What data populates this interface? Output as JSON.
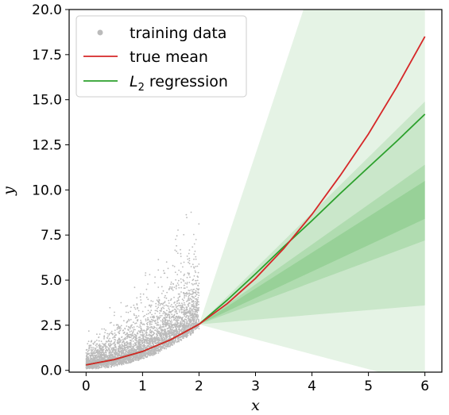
{
  "chart_data": {
    "type": "scatter",
    "xlabel": "x",
    "ylabel": "y",
    "xlim": [
      -0.3,
      6.3
    ],
    "ylim": [
      -0.1,
      20.0
    ],
    "xticks": [
      "0",
      "1",
      "2",
      "3",
      "4",
      "5",
      "6"
    ],
    "yticks": [
      "0.0",
      "2.5",
      "5.0",
      "7.5",
      "10.0",
      "12.5",
      "15.0",
      "17.5",
      "20.0"
    ],
    "legend_position": "upper-left",
    "training_data": {
      "label": "training data",
      "x_range": [
        0,
        2
      ],
      "color": "#bbbbbb",
      "approx_points": 4000
    },
    "true_mean": {
      "label": "true mean",
      "color": "#d62728",
      "x": [
        0,
        0.5,
        1,
        1.5,
        2,
        2.5,
        3,
        3.5,
        4,
        4.5,
        5,
        5.5,
        6
      ],
      "y": [
        0.3,
        0.6,
        1.05,
        1.7,
        2.55,
        3.7,
        5.1,
        6.75,
        8.65,
        10.8,
        13.1,
        15.7,
        18.5
      ]
    },
    "l2_regression": {
      "label": "L2 regression",
      "label_main": "L",
      "label_sub": "2",
      "label_rest": " regression",
      "color": "#2ca02c",
      "x": [
        0,
        0.5,
        1,
        1.5,
        2,
        2.5,
        3,
        3.5,
        4,
        4.5,
        5,
        5.5,
        6
      ],
      "y": [
        0.3,
        0.6,
        1.05,
        1.7,
        2.55,
        3.9,
        5.35,
        6.85,
        8.3,
        9.8,
        11.25,
        12.7,
        14.2
      ]
    },
    "bands": {
      "color": "#2ca02c",
      "origin": [
        2,
        2.55
      ],
      "end_x": 6,
      "levels": [
        {
          "opacity": 0.12,
          "y_low": -0.1,
          "y_high": 20.0,
          "y_high_at_x": 3.85,
          "y_low_at_x": 5.2
        },
        {
          "opacity": 0.14,
          "y_low": 3.6,
          "y_high": 14.9
        },
        {
          "opacity": 0.16,
          "y_low": 7.2,
          "y_high": 11.4
        },
        {
          "opacity": 0.18,
          "y_low": 8.4,
          "y_high": 10.5
        }
      ]
    }
  }
}
